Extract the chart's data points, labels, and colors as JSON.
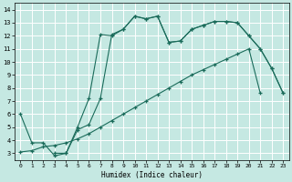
{
  "xlabel": "Humidex (Indice chaleur)",
  "xlim": [
    -0.5,
    23.5
  ],
  "ylim": [
    2.5,
    14.5
  ],
  "xticks": [
    0,
    1,
    2,
    3,
    4,
    5,
    6,
    7,
    8,
    9,
    10,
    11,
    12,
    13,
    14,
    15,
    16,
    17,
    18,
    19,
    20,
    21,
    22,
    23
  ],
  "yticks": [
    3,
    4,
    5,
    6,
    7,
    8,
    9,
    10,
    11,
    12,
    13,
    14
  ],
  "bg_color": "#c5e8e2",
  "grid_color": "#ffffff",
  "line_color": "#1a6b5a",
  "curve1_x": [
    0,
    1,
    2,
    3,
    4,
    5,
    6,
    7,
    8,
    9,
    10,
    11,
    12,
    13,
    14,
    15,
    16,
    17,
    18,
    19,
    20,
    21,
    22,
    23
  ],
  "curve1_y": [
    6.0,
    3.8,
    3.8,
    2.8,
    3.0,
    5.0,
    7.2,
    12.1,
    12.0,
    12.5,
    13.5,
    13.3,
    13.5,
    11.5,
    11.6,
    12.5,
    12.8,
    13.1,
    13.1,
    13.0,
    12.0,
    11.0,
    9.5,
    7.6
  ],
  "curve2_x": [
    0,
    1,
    2,
    3,
    4,
    5,
    6,
    7,
    8,
    9,
    10,
    11,
    12,
    13,
    14,
    15,
    16,
    17,
    18,
    19,
    20,
    21
  ],
  "curve2_y": [
    3.1,
    3.2,
    3.5,
    3.6,
    3.8,
    4.1,
    4.5,
    5.0,
    5.5,
    6.0,
    6.5,
    7.0,
    7.5,
    8.0,
    8.5,
    9.0,
    9.4,
    9.8,
    10.2,
    10.6,
    11.0,
    7.6
  ],
  "curve3_x": [
    3,
    4,
    5,
    6,
    7,
    8,
    9,
    10,
    11,
    12,
    13,
    14,
    15,
    16,
    17,
    18,
    19,
    20,
    21,
    22,
    23
  ],
  "curve3_y": [
    3.0,
    3.0,
    4.8,
    5.2,
    7.2,
    12.1,
    12.5,
    13.5,
    13.3,
    13.5,
    11.5,
    11.6,
    12.5,
    12.8,
    13.1,
    13.1,
    13.0,
    12.0,
    11.0,
    9.5,
    7.6
  ]
}
